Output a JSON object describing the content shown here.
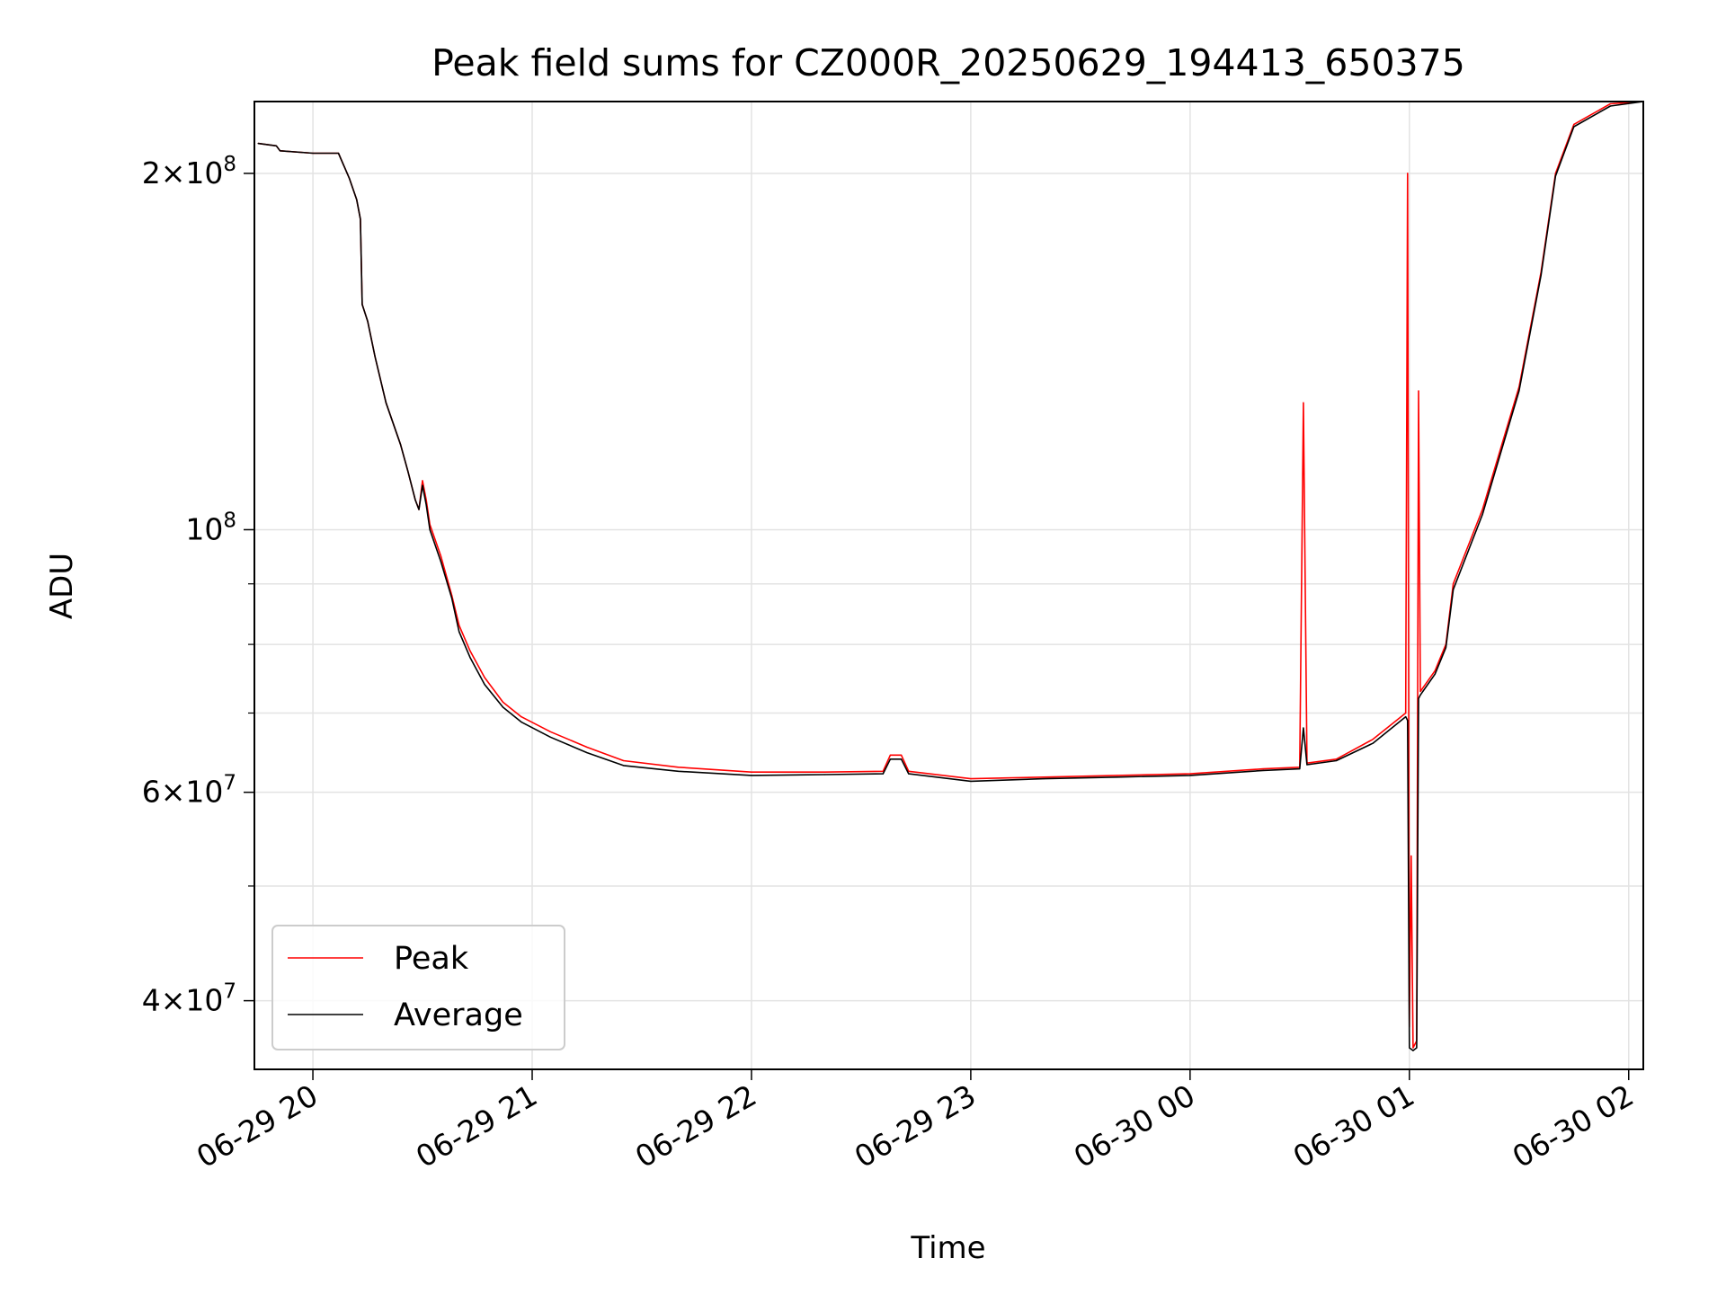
{
  "chart_data": {
    "type": "line",
    "title": "Peak field sums for CZ000R_20250629_194413_650375",
    "xlabel": "Time",
    "ylabel": "ADU",
    "yscale": "log",
    "ylim": [
      35000000,
      230000000
    ],
    "xlim": [
      "06-29 19:44",
      "06-30 02:04"
    ],
    "x_ticks": [
      "06-29 20",
      "06-29 21",
      "06-29 22",
      "06-29 23",
      "06-30 00",
      "06-30 01",
      "06-30 02"
    ],
    "y_ticks": [
      {
        "mantissa": "4",
        "exp": "7",
        "value": 40000000
      },
      {
        "mantissa": "6",
        "exp": "7",
        "value": 60000000
      },
      {
        "mantissa": "",
        "exp": "8",
        "value": 100000000
      },
      {
        "mantissa": "2",
        "exp": "8",
        "value": 200000000
      }
    ],
    "y_minor_ticks": [
      50000000,
      70000000,
      80000000,
      90000000
    ],
    "grid": true,
    "legend_position": "lower-left",
    "series": [
      {
        "name": "Peak",
        "color": "#ff0000",
        "points": [
          [
            "06-29 19:45",
            212000000
          ],
          [
            "06-29 19:50",
            211000000
          ],
          [
            "06-29 19:51",
            209000000
          ],
          [
            "06-29 20:00",
            208000000
          ],
          [
            "06-29 20:07",
            208000000
          ],
          [
            "06-29 20:10",
            198000000
          ],
          [
            "06-29 20:12",
            190000000
          ],
          [
            "06-29 20:13",
            183000000
          ],
          [
            "06-29 20:13.5",
            155000000
          ],
          [
            "06-29 20:15",
            150000000
          ],
          [
            "06-29 20:17",
            140000000
          ],
          [
            "06-29 20:20",
            128000000
          ],
          [
            "06-29 20:24",
            118000000
          ],
          [
            "06-29 20:26",
            112000000
          ],
          [
            "06-29 20:28",
            106000000
          ],
          [
            "06-29 20:29",
            104000000
          ],
          [
            "06-29 20:30",
            110000000
          ],
          [
            "06-29 20:31",
            106000000
          ],
          [
            "06-29 20:32",
            101000000
          ],
          [
            "06-29 20:35",
            95000000
          ],
          [
            "06-29 20:38",
            88000000
          ],
          [
            "06-29 20:40",
            83000000
          ],
          [
            "06-29 20:43",
            79000000
          ],
          [
            "06-29 20:47",
            75000000
          ],
          [
            "06-29 20:52",
            71500000
          ],
          [
            "06-29 20:57",
            69500000
          ],
          [
            "06-29 21:05",
            67500000
          ],
          [
            "06-29 21:15",
            65500000
          ],
          [
            "06-29 21:25",
            63800000
          ],
          [
            "06-29 21:40",
            63000000
          ],
          [
            "06-29 22:00",
            62400000
          ],
          [
            "06-29 22:20",
            62400000
          ],
          [
            "06-29 22:36",
            62500000
          ],
          [
            "06-29 22:38",
            64500000
          ],
          [
            "06-29 22:41",
            64500000
          ],
          [
            "06-29 22:43",
            62500000
          ],
          [
            "06-29 23:00",
            61600000
          ],
          [
            "06-29 23:20",
            61800000
          ],
          [
            "06-29 23:40",
            62000000
          ],
          [
            "06-30 00:00",
            62200000
          ],
          [
            "06-30 00:20",
            62800000
          ],
          [
            "06-30 00:30",
            63000000
          ],
          [
            "06-30 00:31",
            128000000
          ],
          [
            "06-30 00:32",
            63500000
          ],
          [
            "06-30 00:40",
            64000000
          ],
          [
            "06-30 00:50",
            66500000
          ],
          [
            "06-30 00:59",
            70000000
          ],
          [
            "06-30 00:59.5",
            200000000
          ],
          [
            "06-30 01:00",
            38000000
          ],
          [
            "06-30 01:00.5",
            53000000
          ],
          [
            "06-30 01:01",
            36500000
          ],
          [
            "06-30 01:02",
            37000000
          ],
          [
            "06-30 01:02.5",
            131000000
          ],
          [
            "06-30 01:03",
            73000000
          ],
          [
            "06-30 01:07",
            76000000
          ],
          [
            "06-30 01:10",
            80000000
          ],
          [
            "06-30 01:12",
            90000000
          ],
          [
            "06-30 01:20",
            104000000
          ],
          [
            "06-30 01:30",
            132000000
          ],
          [
            "06-30 01:36",
            165000000
          ],
          [
            "06-30 01:40",
            200000000
          ],
          [
            "06-30 01:45",
            220000000
          ],
          [
            "06-30 01:55",
            229000000
          ],
          [
            "06-30 02:04",
            230000000
          ]
        ]
      },
      {
        "name": "Average",
        "color": "#000000",
        "points": [
          [
            "06-29 19:45",
            212000000
          ],
          [
            "06-29 19:50",
            211000000
          ],
          [
            "06-29 19:51",
            209000000
          ],
          [
            "06-29 20:00",
            208000000
          ],
          [
            "06-29 20:07",
            208000000
          ],
          [
            "06-29 20:10",
            198000000
          ],
          [
            "06-29 20:12",
            190000000
          ],
          [
            "06-29 20:13",
            183000000
          ],
          [
            "06-29 20:13.5",
            155000000
          ],
          [
            "06-29 20:15",
            150000000
          ],
          [
            "06-29 20:17",
            140000000
          ],
          [
            "06-29 20:20",
            128000000
          ],
          [
            "06-29 20:24",
            118000000
          ],
          [
            "06-29 20:26",
            112000000
          ],
          [
            "06-29 20:28",
            106000000
          ],
          [
            "06-29 20:29",
            104000000
          ],
          [
            "06-29 20:30",
            109000000
          ],
          [
            "06-29 20:31",
            105000000
          ],
          [
            "06-29 20:32",
            100000000
          ],
          [
            "06-29 20:35",
            94000000
          ],
          [
            "06-29 20:38",
            87500000
          ],
          [
            "06-29 20:40",
            82000000
          ],
          [
            "06-29 20:43",
            78000000
          ],
          [
            "06-29 20:47",
            74000000
          ],
          [
            "06-29 20:52",
            70800000
          ],
          [
            "06-29 20:57",
            68800000
          ],
          [
            "06-29 21:05",
            66800000
          ],
          [
            "06-29 21:15",
            64800000
          ],
          [
            "06-29 21:25",
            63200000
          ],
          [
            "06-29 21:40",
            62500000
          ],
          [
            "06-29 22:00",
            62000000
          ],
          [
            "06-29 22:20",
            62100000
          ],
          [
            "06-29 22:36",
            62200000
          ],
          [
            "06-29 22:38",
            64000000
          ],
          [
            "06-29 22:41",
            64000000
          ],
          [
            "06-29 22:43",
            62200000
          ],
          [
            "06-29 23:00",
            61300000
          ],
          [
            "06-29 23:20",
            61600000
          ],
          [
            "06-29 23:40",
            61800000
          ],
          [
            "06-30 00:00",
            62000000
          ],
          [
            "06-30 00:20",
            62600000
          ],
          [
            "06-30 00:30",
            62800000
          ],
          [
            "06-30 00:31",
            68000000
          ],
          [
            "06-30 00:32",
            63300000
          ],
          [
            "06-30 00:40",
            63800000
          ],
          [
            "06-30 00:50",
            66000000
          ],
          [
            "06-30 00:59",
            69500000
          ],
          [
            "06-30 00:59.5",
            69000000
          ],
          [
            "06-30 01:00",
            36500000
          ],
          [
            "06-30 01:01",
            36300000
          ],
          [
            "06-30 01:02",
            36500000
          ],
          [
            "06-30 01:02.5",
            72000000
          ],
          [
            "06-30 01:03",
            72500000
          ],
          [
            "06-30 01:07",
            75500000
          ],
          [
            "06-30 01:10",
            79500000
          ],
          [
            "06-30 01:12",
            89000000
          ],
          [
            "06-30 01:20",
            103000000
          ],
          [
            "06-30 01:30",
            131000000
          ],
          [
            "06-30 01:36",
            164000000
          ],
          [
            "06-30 01:40",
            199000000
          ],
          [
            "06-30 01:45",
            219000000
          ],
          [
            "06-30 01:55",
            228000000
          ],
          [
            "06-30 02:04",
            230000000
          ]
        ]
      }
    ]
  }
}
